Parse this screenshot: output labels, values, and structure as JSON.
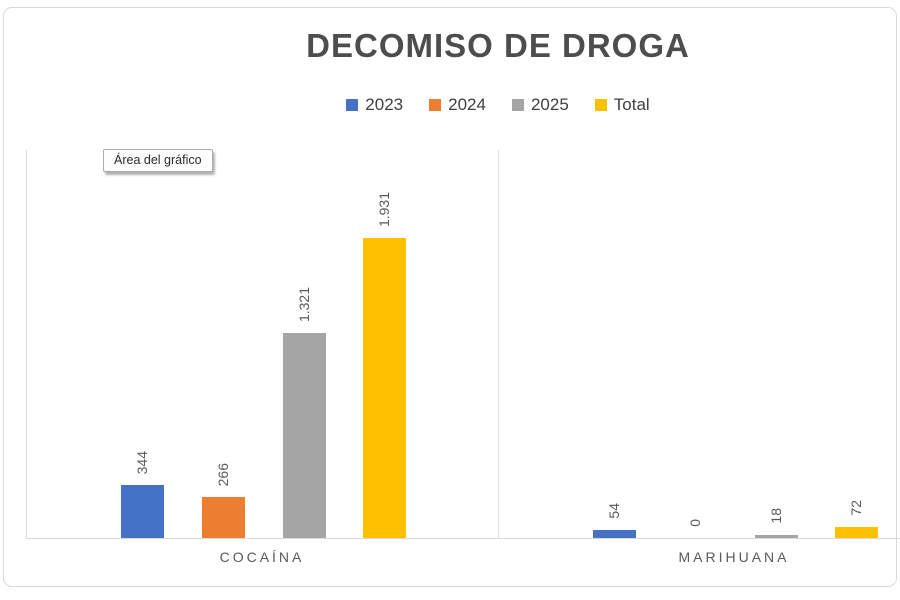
{
  "tooltip_text": "Área del gráfico",
  "chart_data": {
    "type": "bar",
    "title": "DECOMISO DE DROGA",
    "categories": [
      "COCAÍNA",
      "MARIHUANA"
    ],
    "series": [
      {
        "name": "2023",
        "color": "#4472C4",
        "values": [
          344,
          54
        ],
        "labels": [
          "344",
          "54"
        ]
      },
      {
        "name": "2024",
        "color": "#ED7D31",
        "values": [
          266,
          0
        ],
        "labels": [
          "266",
          "0"
        ]
      },
      {
        "name": "2025",
        "color": "#A5A5A5",
        "values": [
          1321,
          18
        ],
        "labels": [
          "1.321",
          "18"
        ]
      },
      {
        "name": "Total",
        "color": "#FFC000",
        "values": [
          1931,
          72
        ],
        "labels": [
          "1.931",
          "72"
        ]
      }
    ],
    "ylim": [
      0,
      2500
    ],
    "xlabel": "",
    "ylabel": "",
    "grid": false,
    "legend_position": "top",
    "data_label_rotation": -90,
    "axis_line_color": "#d9d9d9",
    "title_color": "#4d4d4d",
    "label_color": "#595959"
  }
}
